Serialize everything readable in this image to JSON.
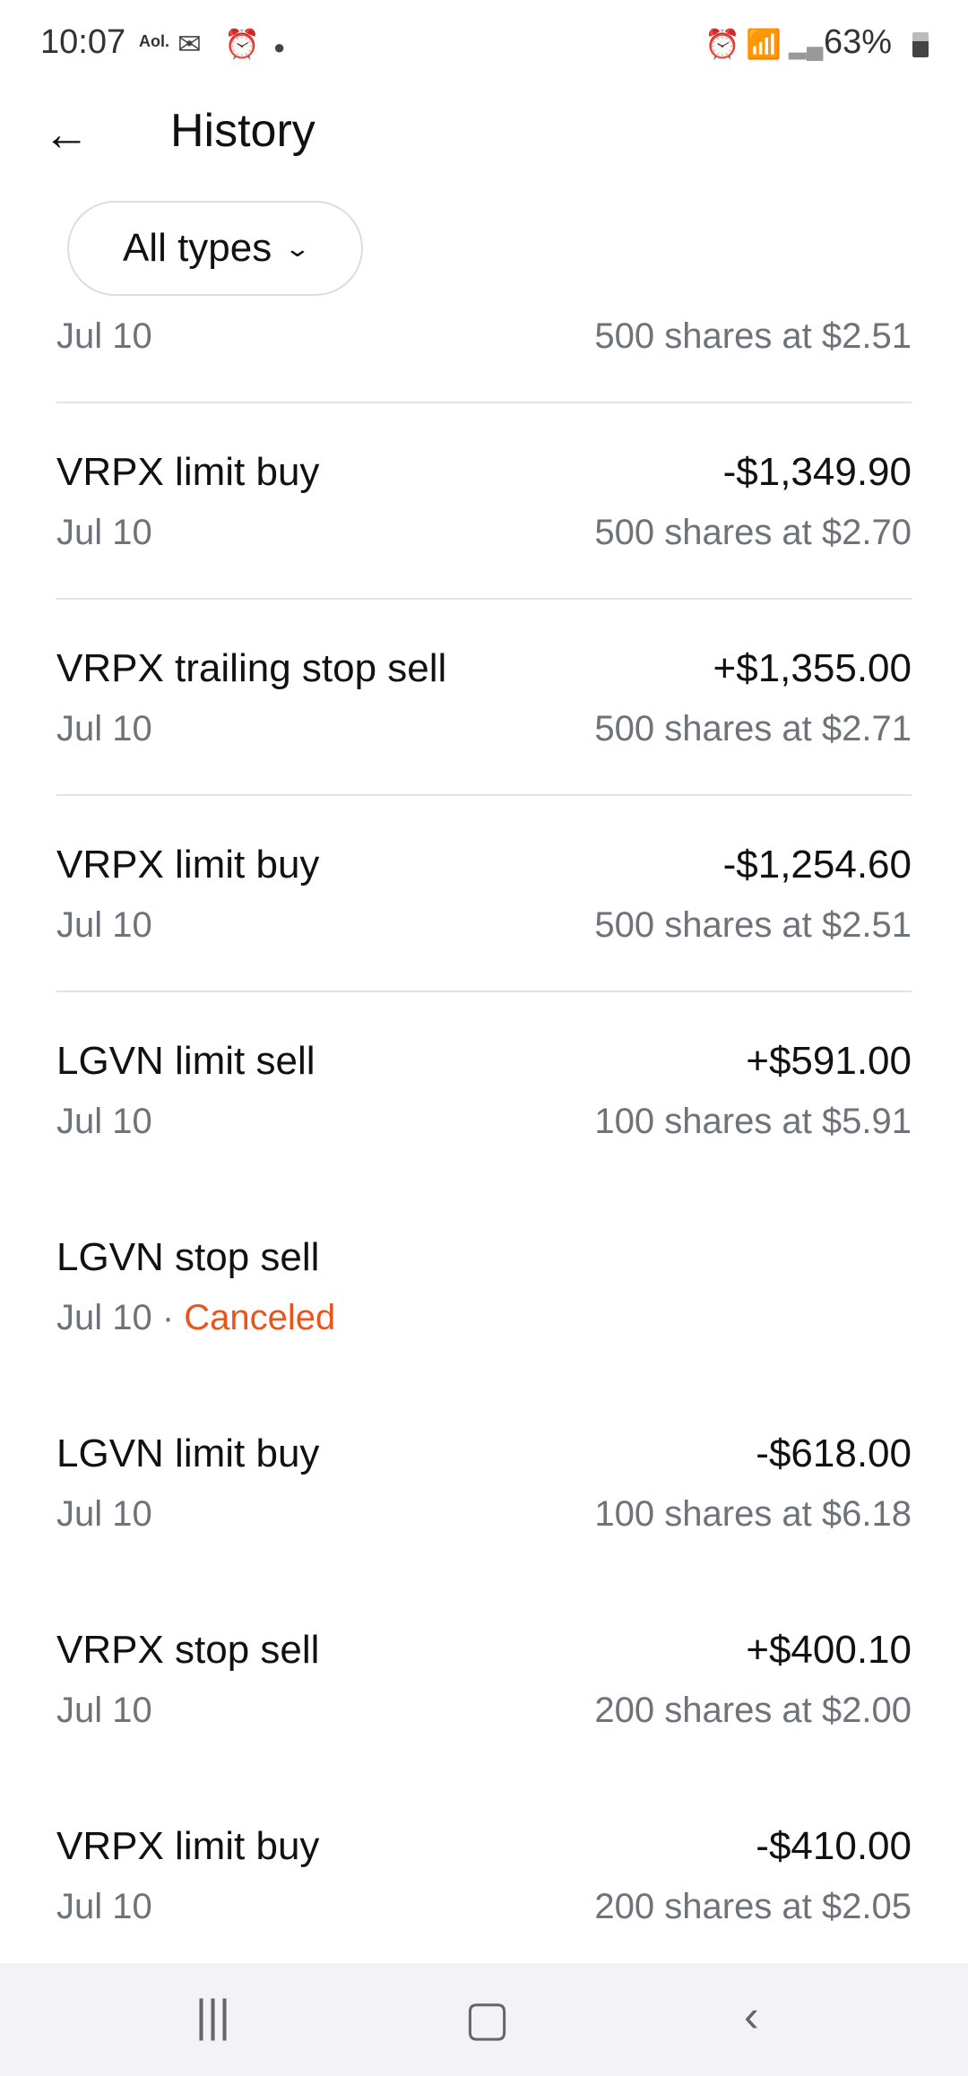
{
  "status_bar": {
    "time": "10:07",
    "aol": "Aol.",
    "battery": "63%"
  },
  "header": {
    "title": "History"
  },
  "filter": {
    "label": "All types"
  },
  "colors": {
    "canceled": "#e8561e",
    "secondary_text": "#6e7279"
  },
  "rows": [
    {
      "title": "",
      "amount": "",
      "date": "Jul 10",
      "status": "",
      "detail": "500 shares at $2.51",
      "divider": true
    },
    {
      "title": "VRPX limit buy",
      "amount": "-$1,349.90",
      "date": "Jul 10",
      "status": "",
      "detail": "500 shares at $2.70",
      "divider": true
    },
    {
      "title": "VRPX trailing stop sell",
      "amount": "+$1,355.00",
      "date": "Jul 10",
      "status": "",
      "detail": "500 shares at $2.71",
      "divider": true
    },
    {
      "title": "VRPX limit buy",
      "amount": "-$1,254.60",
      "date": "Jul 10",
      "status": "",
      "detail": "500 shares at $2.51",
      "divider": true
    },
    {
      "title": "LGVN limit sell",
      "amount": "+$591.00",
      "date": "Jul 10",
      "status": "",
      "detail": "100 shares at $5.91",
      "divider": false
    },
    {
      "title": "LGVN stop sell",
      "amount": "",
      "date": "Jul 10",
      "status": "Canceled",
      "detail": "",
      "divider": false
    },
    {
      "title": "LGVN limit buy",
      "amount": "-$618.00",
      "date": "Jul 10",
      "status": "",
      "detail": "100 shares at $6.18",
      "divider": false
    },
    {
      "title": "VRPX stop sell",
      "amount": "+$400.10",
      "date": "Jul 10",
      "status": "",
      "detail": "200 shares at $2.00",
      "divider": false
    },
    {
      "title": "VRPX limit buy",
      "amount": "-$410.00",
      "date": "Jul 10",
      "status": "",
      "detail": "200 shares at $2.05",
      "divider": false
    }
  ]
}
